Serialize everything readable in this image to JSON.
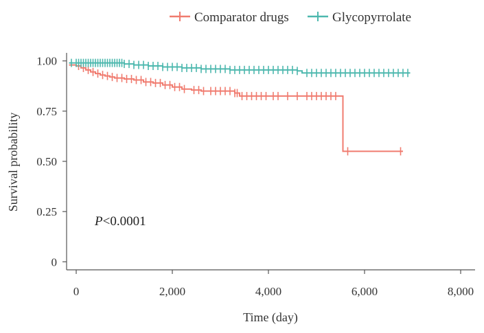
{
  "chart_data": {
    "type": "line",
    "subtype": "kaplan-meier step",
    "title": "",
    "xlabel": "Time (day)",
    "ylabel": "Survival probability",
    "xlim": [
      -200,
      8300
    ],
    "ylim": [
      -0.04,
      1.04
    ],
    "x_ticks": [
      0,
      2000,
      4000,
      6000,
      8000
    ],
    "x_tick_labels": [
      "0",
      "2,000",
      "4,000",
      "6,000",
      "8,000"
    ],
    "y_ticks": [
      0,
      0.25,
      0.5,
      0.75,
      1.0
    ],
    "y_tick_labels": [
      "0",
      "0.25",
      "0.50",
      "0.75",
      "1.00"
    ],
    "grid": false,
    "legend_position": "top",
    "annotation": {
      "italic": "P",
      "rest": "<0.0001"
    },
    "series": [
      {
        "name": "Comparator drugs",
        "color": "#f07b6f",
        "steps": [
          [
            -150,
            0.98
          ],
          [
            0,
            0.975
          ],
          [
            100,
            0.965
          ],
          [
            200,
            0.955
          ],
          [
            300,
            0.945
          ],
          [
            400,
            0.937
          ],
          [
            500,
            0.93
          ],
          [
            600,
            0.925
          ],
          [
            700,
            0.92
          ],
          [
            800,
            0.915
          ],
          [
            1000,
            0.91
          ],
          [
            1200,
            0.905
          ],
          [
            1400,
            0.895
          ],
          [
            1600,
            0.89
          ],
          [
            1800,
            0.88
          ],
          [
            2000,
            0.87
          ],
          [
            2200,
            0.86
          ],
          [
            2400,
            0.855
          ],
          [
            2600,
            0.85
          ],
          [
            3300,
            0.84
          ],
          [
            3400,
            0.825
          ],
          [
            5550,
            0.825
          ],
          [
            5550,
            0.55
          ],
          [
            6800,
            0.55
          ]
        ],
        "censors": [
          50,
          150,
          250,
          350,
          450,
          550,
          650,
          750,
          850,
          950,
          1050,
          1150,
          1250,
          1350,
          1450,
          1550,
          1650,
          1750,
          1850,
          1950,
          2050,
          2150,
          2250,
          2450,
          2550,
          2650,
          2800,
          2900,
          3000,
          3100,
          3200,
          3300,
          3350,
          3450,
          3550,
          3650,
          3750,
          3850,
          3950,
          4100,
          4200,
          4400,
          4600,
          4800,
          4900,
          5000,
          5100,
          5200,
          5300,
          5400,
          5650,
          6750
        ]
      },
      {
        "name": "Glycopyrrolate",
        "color": "#4db8ae",
        "steps": [
          [
            -150,
            0.99
          ],
          [
            1000,
            0.985
          ],
          [
            1200,
            0.98
          ],
          [
            1500,
            0.975
          ],
          [
            1800,
            0.97
          ],
          [
            2200,
            0.965
          ],
          [
            2600,
            0.96
          ],
          [
            3200,
            0.955
          ],
          [
            4600,
            0.95
          ],
          [
            4700,
            0.94
          ],
          [
            6950,
            0.94
          ]
        ],
        "censors": [
          -100,
          0,
          50,
          100,
          150,
          200,
          250,
          300,
          350,
          400,
          450,
          500,
          550,
          600,
          650,
          700,
          750,
          800,
          850,
          900,
          950,
          1000,
          1100,
          1200,
          1300,
          1400,
          1500,
          1600,
          1700,
          1800,
          1900,
          2000,
          2100,
          2200,
          2300,
          2400,
          2500,
          2600,
          2700,
          2800,
          2900,
          3000,
          3100,
          3200,
          3300,
          3400,
          3500,
          3600,
          3700,
          3800,
          3900,
          4000,
          4100,
          4200,
          4300,
          4400,
          4500,
          4600,
          4800,
          4900,
          5000,
          5100,
          5200,
          5300,
          5400,
          5500,
          5600,
          5700,
          5800,
          5900,
          6000,
          6100,
          6200,
          6300,
          6400,
          6500,
          6600,
          6700,
          6800,
          6900
        ]
      }
    ]
  }
}
